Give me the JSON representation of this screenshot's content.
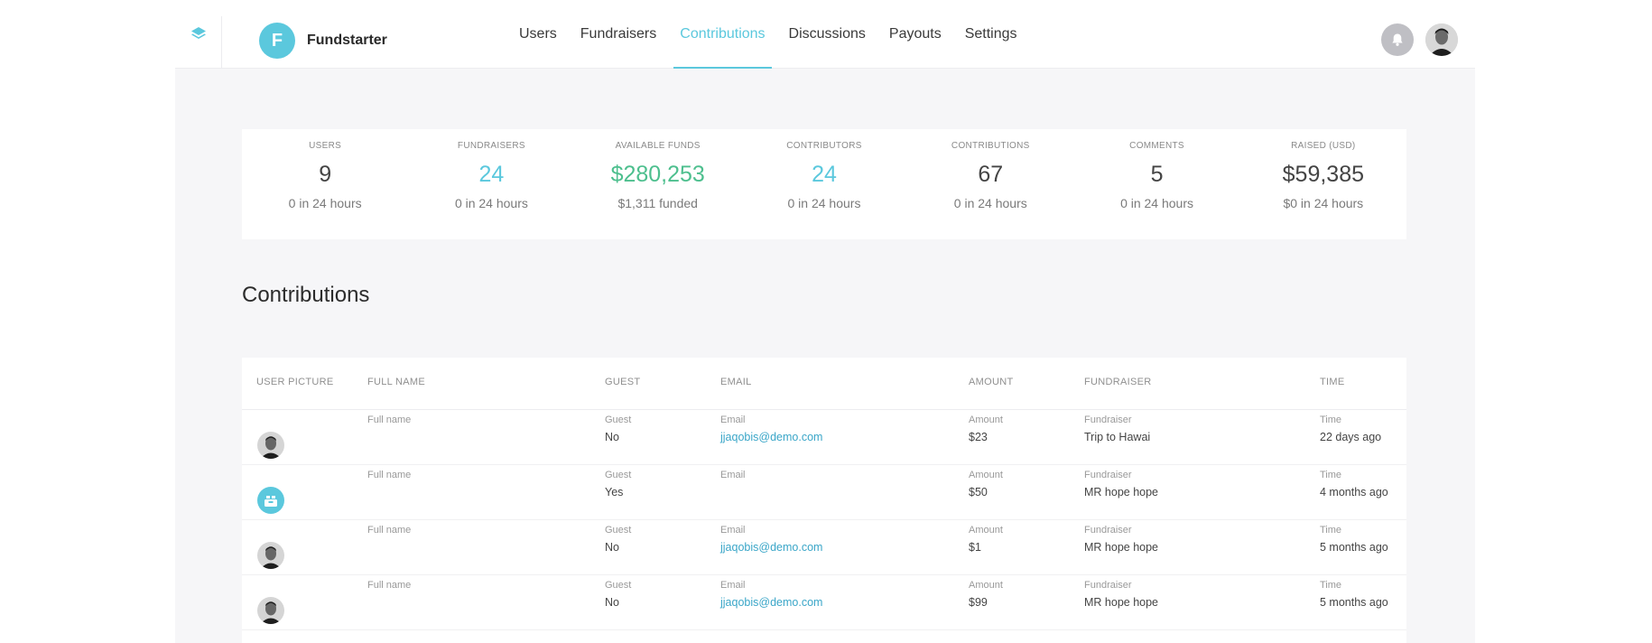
{
  "brand": {
    "initial": "F",
    "name": "Fundstarter"
  },
  "nav": [
    "Users",
    "Fundraisers",
    "Contributions",
    "Discussions",
    "Payouts",
    "Settings"
  ],
  "active_nav": "Contributions",
  "stats": [
    {
      "label": "USERS",
      "value": "9",
      "sub": "0 in 24 hours",
      "color": "#444444"
    },
    {
      "label": "FUNDRAISERS",
      "value": "24",
      "sub": "0 in 24 hours",
      "color": "#5bc8dd"
    },
    {
      "label": "AVAILABLE FUNDS",
      "value": "$280,253",
      "sub": "$1,311 funded",
      "color": "#4dbf8e"
    },
    {
      "label": "CONTRIBUTORS",
      "value": "24",
      "sub": "0 in 24 hours",
      "color": "#5bc8dd"
    },
    {
      "label": "CONTRIBUTIONS",
      "value": "67",
      "sub": "0 in 24 hours",
      "color": "#444444"
    },
    {
      "label": "COMMENTS",
      "value": "5",
      "sub": "0 in 24 hours",
      "color": "#444444"
    },
    {
      "label": "RAISED (USD)",
      "value": "$59,385",
      "sub": "$0 in 24 hours",
      "color": "#444444"
    }
  ],
  "section_title": "Contributions",
  "table": {
    "headers": [
      "USER PICTURE",
      "FULL NAME",
      "GUEST",
      "EMAIL",
      "AMOUNT",
      "FUNDRAISER",
      "TIME"
    ],
    "field_labels": {
      "full_name": "Full name",
      "guest": "Guest",
      "email": "Email",
      "amount": "Amount",
      "fundraiser": "Fundraiser",
      "time": "Time"
    },
    "rows": [
      {
        "avatar": "photo",
        "guest": "No",
        "email": "jjaqobis@demo.com",
        "amount": "$23",
        "fundraiser": "Trip to Hawai",
        "time": "22 days ago"
      },
      {
        "avatar": "guest",
        "guest": "Yes",
        "email": "",
        "amount": "$50",
        "fundraiser": "MR hope hope",
        "time": "4 months ago"
      },
      {
        "avatar": "photo",
        "guest": "No",
        "email": "jjaqobis@demo.com",
        "amount": "$1",
        "fundraiser": "MR hope hope",
        "time": "5 months ago"
      },
      {
        "avatar": "photo",
        "guest": "No",
        "email": "jjaqobis@demo.com",
        "amount": "$99",
        "fundraiser": "MR hope hope",
        "time": "5 months ago"
      }
    ]
  },
  "colors": {
    "accent": "#5bc8dd",
    "funds": "#4dbf8e",
    "link": "#3aa6c8"
  }
}
